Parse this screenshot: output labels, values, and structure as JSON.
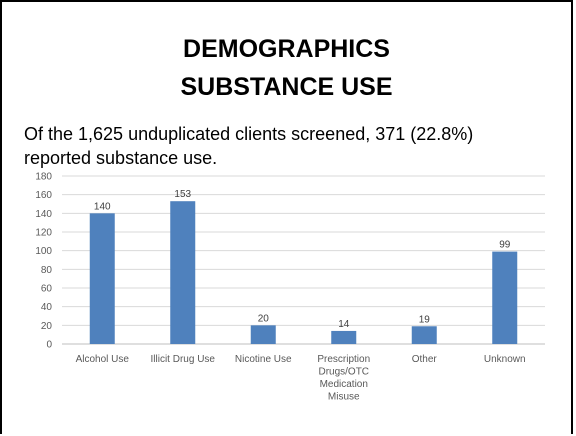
{
  "slide": {
    "title_line1": "DEMOGRAPHICS",
    "title_line2": "SUBSTANCE USE",
    "subtitle": "Of the 1,625 unduplicated clients screened, 371 (22.8%) reported substance use."
  },
  "chart_data": {
    "type": "bar",
    "categories": [
      [
        "Alcohol Use"
      ],
      [
        "Illicit Drug Use"
      ],
      [
        "Nicotine Use"
      ],
      [
        "Prescription",
        "Drugs/OTC",
        "Medication",
        "Misuse"
      ],
      [
        "Other"
      ],
      [
        "Unknown"
      ]
    ],
    "values": [
      140,
      153,
      20,
      14,
      19,
      99
    ],
    "ylim": [
      0,
      180
    ],
    "yticks": [
      0,
      20,
      40,
      60,
      80,
      100,
      120,
      140,
      160,
      180
    ],
    "bar_color": "#4f81bd",
    "grid": true,
    "grid_color": "#d9d9d9",
    "data_labels": true,
    "title": "",
    "xlabel": "",
    "ylabel": ""
  }
}
